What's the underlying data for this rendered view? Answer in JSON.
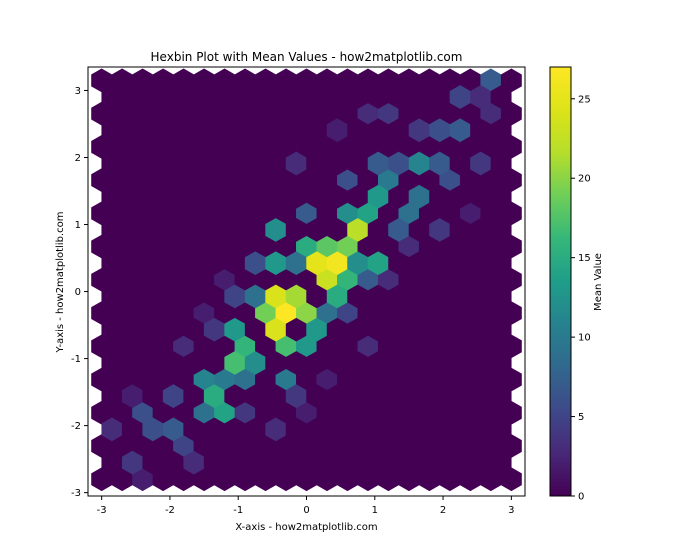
{
  "chart_data": {
    "type": "heatmap",
    "subtype": "hexbin",
    "title": "Hexbin Plot with Mean Values - how2matplotlib.com",
    "xlabel": "X-axis - how2matplotlib.com",
    "ylabel": "Y-axis - how2matplotlib.com",
    "xlim": [
      -3.2,
      3.2
    ],
    "ylim": [
      -3.05,
      3.35
    ],
    "xticks": [
      -3,
      -2,
      -1,
      0,
      1,
      2,
      3
    ],
    "xtick_labels": [
      "-3",
      "-2",
      "-1",
      "0",
      "1",
      "2",
      "3"
    ],
    "yticks": [
      -3,
      -2,
      -1,
      0,
      1,
      2,
      3
    ],
    "ytick_labels": [
      "-3",
      "-2",
      "-1",
      "0",
      "1",
      "2",
      "3"
    ],
    "gridsize": 20,
    "colormap": "viridis",
    "grid": false,
    "colorbar": {
      "label": "Mean Value",
      "range": [
        0,
        27
      ],
      "ticks": [
        0,
        5,
        10,
        15,
        20,
        25
      ],
      "tick_labels": [
        "0",
        "5",
        "10",
        "15",
        "20",
        "25"
      ]
    },
    "hot_cells": [
      {
        "x": -0.2,
        "y": -0.3,
        "value": 27
      },
      {
        "x": 0.5,
        "y": 0.45,
        "value": 26
      },
      {
        "x": 0.2,
        "y": 0.35,
        "value": 25
      },
      {
        "x": -0.35,
        "y": -0.05,
        "value": 24
      },
      {
        "x": -0.45,
        "y": -0.55,
        "value": 24
      },
      {
        "x": 0.15,
        "y": 0.15,
        "value": 23
      },
      {
        "x": 0.75,
        "y": 0.95,
        "value": 22
      },
      {
        "x": -0.05,
        "y": -0.1,
        "value": 21
      },
      {
        "x": 0.0,
        "y": -0.35,
        "value": 20
      },
      {
        "x": -0.6,
        "y": -0.35,
        "value": 19
      },
      {
        "x": 0.6,
        "y": 0.75,
        "value": 19
      },
      {
        "x": 0.3,
        "y": 0.7,
        "value": 18
      },
      {
        "x": -0.95,
        "y": -1.05,
        "value": 17
      },
      {
        "x": -0.3,
        "y": -0.85,
        "value": 17
      },
      {
        "x": 0.6,
        "y": 0.15,
        "value": 16
      },
      {
        "x": -0.75,
        "y": -0.75,
        "value": 16
      },
      {
        "x": -1.3,
        "y": -1.6,
        "value": 15
      },
      {
        "x": 0.0,
        "y": 0.85,
        "value": 15
      },
      {
        "x": 1.05,
        "y": 1.45,
        "value": 13
      },
      {
        "x": 0.25,
        "y": -0.65,
        "value": 13
      },
      {
        "x": 1.05,
        "y": 0.45,
        "value": 14
      },
      {
        "x": -0.45,
        "y": 0.25,
        "value": 13
      },
      {
        "x": 0.9,
        "y": 1.2,
        "value": 14
      },
      {
        "x": -1.2,
        "y": -1.85,
        "value": 14
      },
      {
        "x": -0.1,
        "y": -0.85,
        "value": 13
      },
      {
        "x": 0.35,
        "y": -0.05,
        "value": 15
      },
      {
        "x": -1.0,
        "y": -0.65,
        "value": 13
      },
      {
        "x": -0.65,
        "y": -1.05,
        "value": 12
      },
      {
        "x": 1.55,
        "y": 1.95,
        "value": 11
      },
      {
        "x": 0.45,
        "y": 1.1,
        "value": 12
      },
      {
        "x": -1.4,
        "y": -1.35,
        "value": 11
      },
      {
        "x": 0.75,
        "y": 0.45,
        "value": 12
      },
      {
        "x": -0.5,
        "y": 0.85,
        "value": 12
      },
      {
        "x": 1.35,
        "y": 1.7,
        "value": 10
      },
      {
        "x": -0.35,
        "y": -1.3,
        "value": 10
      },
      {
        "x": -1.15,
        "y": -1.3,
        "value": 10
      },
      {
        "x": -1.5,
        "y": -1.85,
        "value": 9
      },
      {
        "x": -0.85,
        "y": -1.4,
        "value": 9
      },
      {
        "x": 1.65,
        "y": 1.5,
        "value": 9
      },
      {
        "x": -0.1,
        "y": 0.55,
        "value": 9
      },
      {
        "x": 1.45,
        "y": 1.2,
        "value": 9
      },
      {
        "x": -0.7,
        "y": -0.1,
        "value": 9
      },
      {
        "x": 0.35,
        "y": -0.35,
        "value": 9
      },
      {
        "x": -2.3,
        "y": -1.8,
        "value": 6
      },
      {
        "x": 2.0,
        "y": 2.3,
        "value": 6
      },
      {
        "x": 1.0,
        "y": 1.8,
        "value": 7
      },
      {
        "x": 2.2,
        "y": 2.5,
        "value": 7
      },
      {
        "x": 2.8,
        "y": 3.15,
        "value": 7
      },
      {
        "x": -2.1,
        "y": -2.1,
        "value": 6
      },
      {
        "x": 1.85,
        "y": 1.85,
        "value": 7
      },
      {
        "x": -1.8,
        "y": -2.1,
        "value": 7
      },
      {
        "x": 2.05,
        "y": 1.7,
        "value": 6
      },
      {
        "x": 1.3,
        "y": 0.95,
        "value": 7
      },
      {
        "x": 0.95,
        "y": 0.05,
        "value": 7
      },
      {
        "x": 0.5,
        "y": 1.7,
        "value": 6
      },
      {
        "x": -0.75,
        "y": 0.45,
        "value": 6
      },
      {
        "x": 1.3,
        "y": 2.05,
        "value": 6
      },
      {
        "x": 0.05,
        "y": 1.05,
        "value": 7
      },
      {
        "x": -1.05,
        "y": -0.25,
        "value": 5
      },
      {
        "x": -1.85,
        "y": -2.4,
        "value": 5
      },
      {
        "x": 2.35,
        "y": 2.85,
        "value": 5
      },
      {
        "x": -1.95,
        "y": -1.65,
        "value": 5
      },
      {
        "x": 1.2,
        "y": 2.55,
        "value": 4
      },
      {
        "x": 2.55,
        "y": 2.05,
        "value": 4
      },
      {
        "x": -2.6,
        "y": -2.55,
        "value": 4
      },
      {
        "x": 0.6,
        "y": -0.5,
        "value": 5
      },
      {
        "x": -0.2,
        "y": -1.6,
        "value": 4
      },
      {
        "x": -0.95,
        "y": -1.95,
        "value": 4
      },
      {
        "x": 1.75,
        "y": 2.45,
        "value": 4
      },
      {
        "x": -1.45,
        "y": -0.55,
        "value": 4
      },
      {
        "x": 1.8,
        "y": 0.95,
        "value": 4
      },
      {
        "x": -0.1,
        "y": 1.85,
        "value": 3
      },
      {
        "x": 0.9,
        "y": 2.6,
        "value": 3
      },
      {
        "x": 2.55,
        "y": 3.0,
        "value": 3
      },
      {
        "x": -2.85,
        "y": -2.15,
        "value": 3
      },
      {
        "x": -1.55,
        "y": -2.45,
        "value": 3
      },
      {
        "x": 0.8,
        "y": -0.75,
        "value": 3
      },
      {
        "x": -1.9,
        "y": -0.75,
        "value": 3
      },
      {
        "x": 1.15,
        "y": 0.15,
        "value": 3
      },
      {
        "x": -0.5,
        "y": -2.0,
        "value": 3
      },
      {
        "x": 2.8,
        "y": 2.6,
        "value": 3
      },
      {
        "x": -2.4,
        "y": -2.8,
        "value": 2
      },
      {
        "x": 0.45,
        "y": 2.55,
        "value": 2
      },
      {
        "x": -1.2,
        "y": 0.05,
        "value": 2
      },
      {
        "x": 1.45,
        "y": 0.55,
        "value": 3
      },
      {
        "x": -2.55,
        "y": -1.45,
        "value": 2
      },
      {
        "x": 0.05,
        "y": -1.9,
        "value": 2
      },
      {
        "x": 2.25,
        "y": 1.2,
        "value": 2
      },
      {
        "x": -1.65,
        "y": -0.35,
        "value": 2
      },
      {
        "x": 0.3,
        "y": -1.2,
        "value": 2
      }
    ]
  }
}
